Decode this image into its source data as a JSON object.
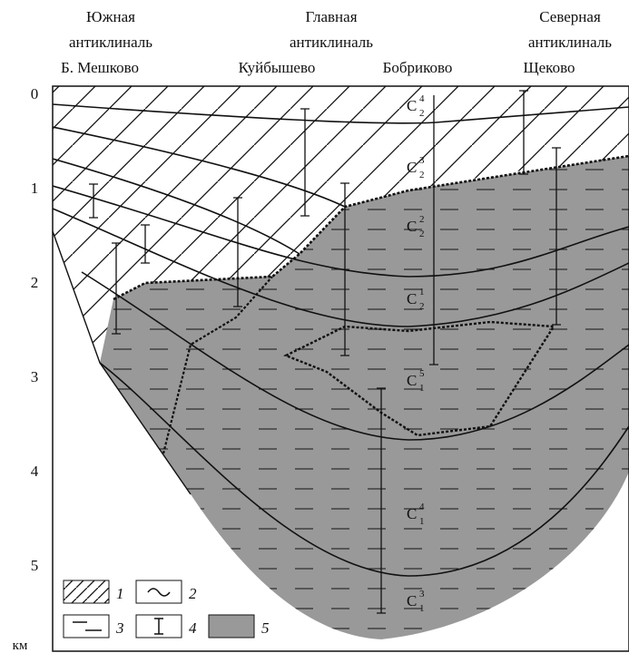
{
  "header": {
    "anticlines": [
      {
        "lines": [
          "Южная",
          "антиклиналь"
        ]
      },
      {
        "lines": [
          "Главная",
          "антиклиналь"
        ]
      },
      {
        "lines": [
          "Северная",
          "антиклиналь"
        ]
      }
    ],
    "places": [
      "Б. Мешково",
      "Куйбышево",
      "Бобриково",
      "Щеково"
    ]
  },
  "depth_axis": {
    "ticks": [
      0,
      1,
      2,
      3,
      4,
      5
    ],
    "unit": "км"
  },
  "layers": [
    {
      "base": "C",
      "sub": "2",
      "sup": "4"
    },
    {
      "base": "C",
      "sub": "2",
      "sup": "3"
    },
    {
      "base": "C",
      "sub": "2",
      "sup": "2"
    },
    {
      "base": "C",
      "sub": "2",
      "sup": "1"
    },
    {
      "base": "C",
      "sub": "1",
      "sup": "5"
    },
    {
      "base": "C",
      "sub": "1",
      "sup": "4"
    },
    {
      "base": "C",
      "sub": "1",
      "sup": "3"
    }
  ],
  "legend": [
    "1",
    "2",
    "3",
    "4",
    "5"
  ]
}
